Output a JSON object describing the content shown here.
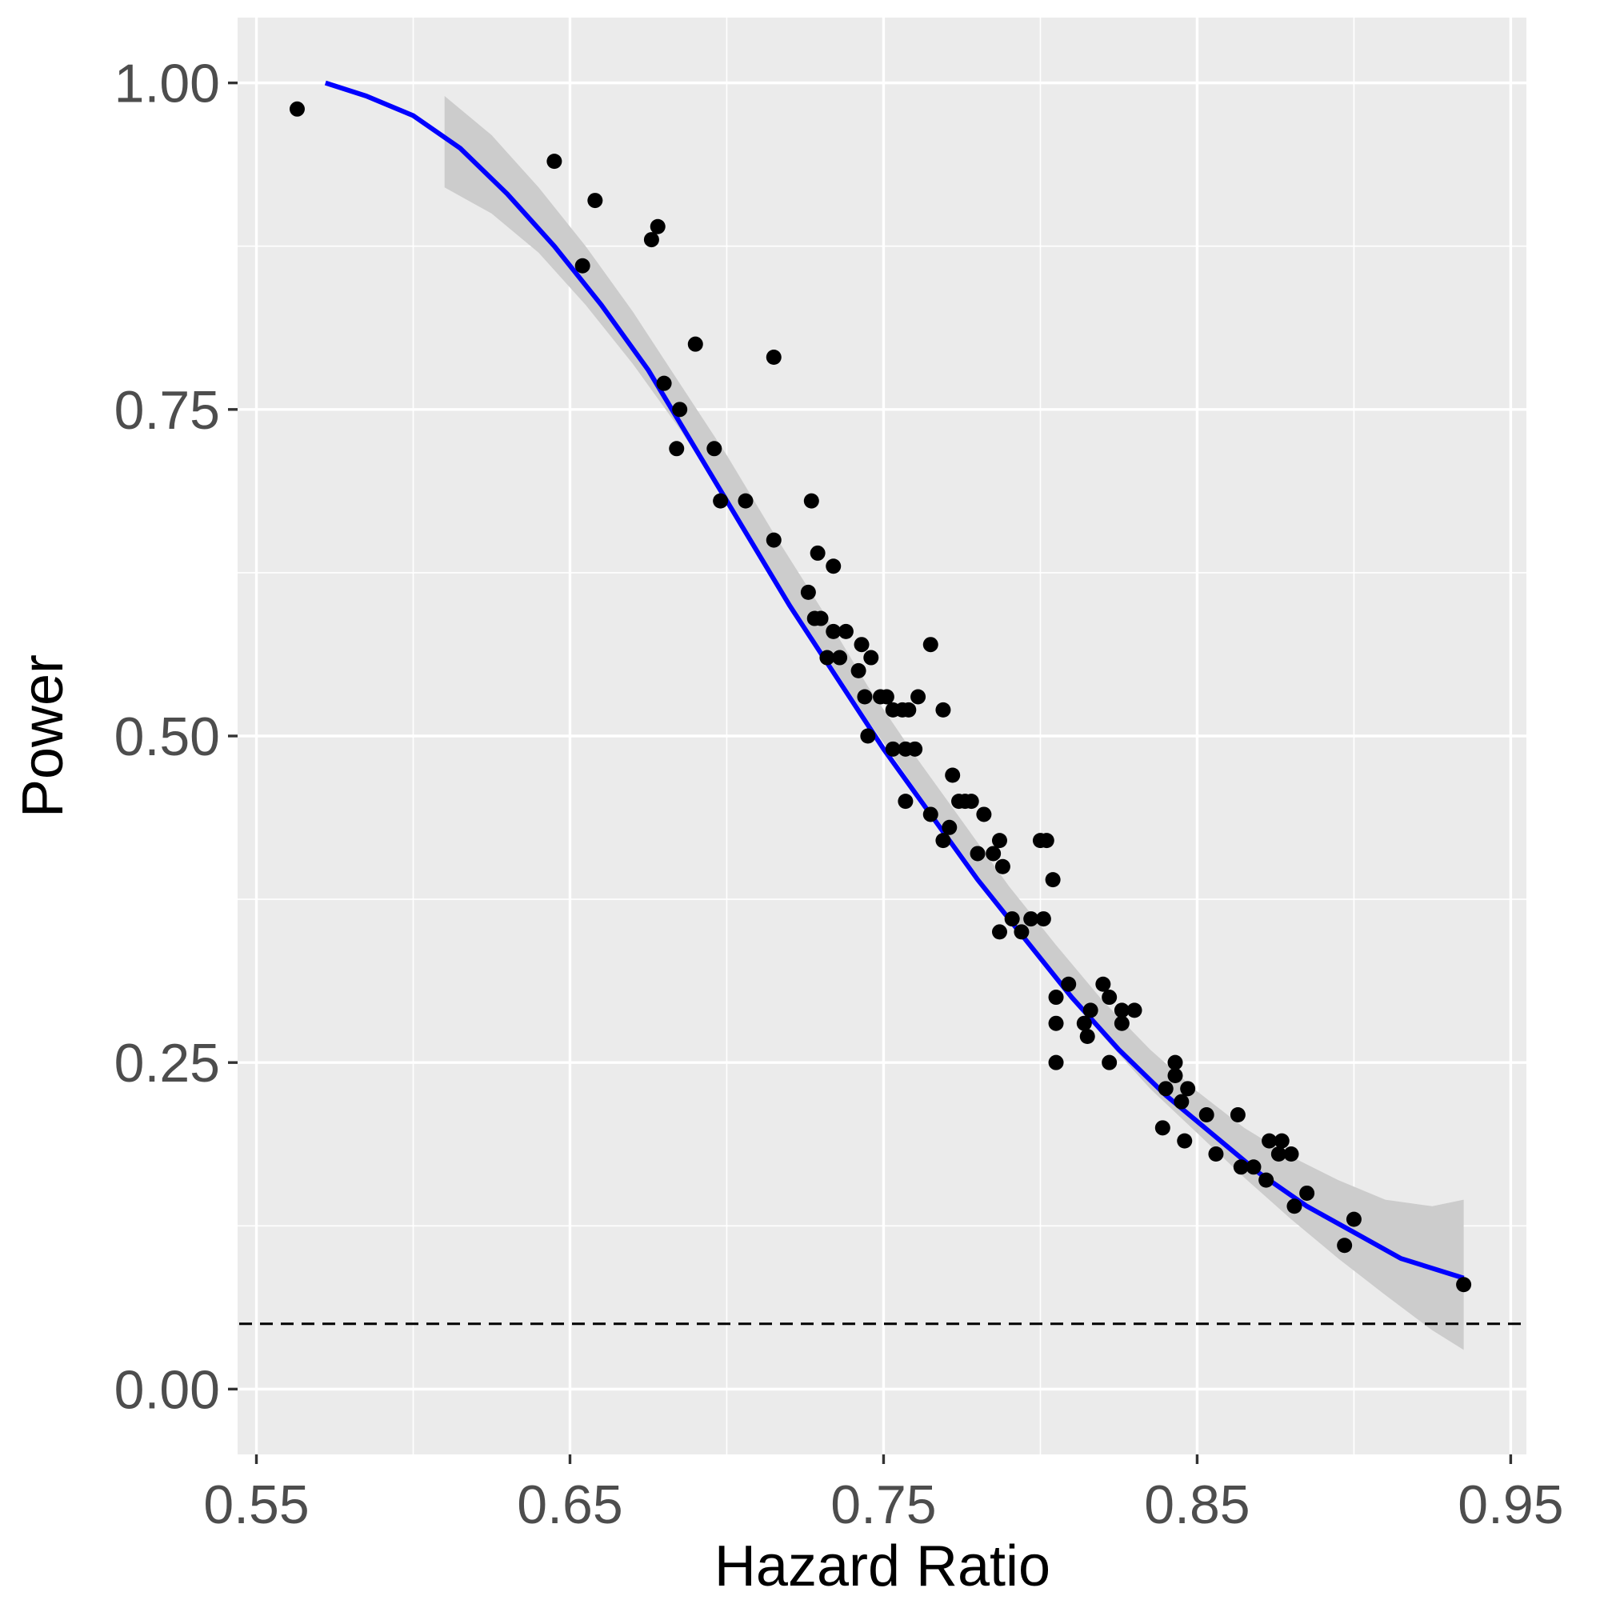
{
  "chart_data": {
    "type": "scatter",
    "xlabel": "Hazard Ratio",
    "ylabel": "Power",
    "xlim": [
      0.544,
      0.955
    ],
    "ylim": [
      -0.05,
      1.05
    ],
    "x_ticks": [
      0.55,
      0.65,
      0.75,
      0.85,
      0.95
    ],
    "x_tick_labels": [
      "0.55",
      "0.65",
      "0.75",
      "0.85",
      "0.95"
    ],
    "x_minor_ticks": [
      0.6,
      0.7,
      0.8,
      0.9
    ],
    "y_ticks": [
      0.0,
      0.25,
      0.5,
      0.75,
      1.0
    ],
    "y_tick_labels": [
      "0.00",
      "0.25",
      "0.50",
      "0.75",
      "1.00"
    ],
    "y_minor_ticks": [
      0.125,
      0.375,
      0.625,
      0.875
    ],
    "grid": true,
    "background": "#ebebeb",
    "grid_color": "#ffffff",
    "point_color": "#000000",
    "fit_color": "#0000ff",
    "band_color": "#cccccc",
    "reference_line": {
      "y": 0.05,
      "style": "dashed",
      "color": "#000000"
    },
    "points": [
      [
        0.563,
        0.98
      ],
      [
        0.645,
        0.94
      ],
      [
        0.654,
        0.86
      ],
      [
        0.658,
        0.91
      ],
      [
        0.676,
        0.88
      ],
      [
        0.678,
        0.89
      ],
      [
        0.68,
        0.77
      ],
      [
        0.684,
        0.72
      ],
      [
        0.685,
        0.75
      ],
      [
        0.69,
        0.8
      ],
      [
        0.696,
        0.72
      ],
      [
        0.698,
        0.68
      ],
      [
        0.706,
        0.68
      ],
      [
        0.715,
        0.65
      ],
      [
        0.715,
        0.79
      ],
      [
        0.726,
        0.61
      ],
      [
        0.727,
        0.68
      ],
      [
        0.728,
        0.59
      ],
      [
        0.729,
        0.64
      ],
      [
        0.73,
        0.59
      ],
      [
        0.732,
        0.56
      ],
      [
        0.734,
        0.58
      ],
      [
        0.734,
        0.63
      ],
      [
        0.736,
        0.56
      ],
      [
        0.738,
        0.58
      ],
      [
        0.742,
        0.55
      ],
      [
        0.743,
        0.57
      ],
      [
        0.744,
        0.53
      ],
      [
        0.745,
        0.5
      ],
      [
        0.746,
        0.56
      ],
      [
        0.749,
        0.53
      ],
      [
        0.751,
        0.53
      ],
      [
        0.753,
        0.49
      ],
      [
        0.753,
        0.52
      ],
      [
        0.756,
        0.52
      ],
      [
        0.757,
        0.45
      ],
      [
        0.757,
        0.49
      ],
      [
        0.758,
        0.52
      ],
      [
        0.76,
        0.49
      ],
      [
        0.761,
        0.53
      ],
      [
        0.765,
        0.57
      ],
      [
        0.765,
        0.44
      ],
      [
        0.769,
        0.52
      ],
      [
        0.769,
        0.42
      ],
      [
        0.771,
        0.43
      ],
      [
        0.772,
        0.47
      ],
      [
        0.774,
        0.45
      ],
      [
        0.776,
        0.45
      ],
      [
        0.778,
        0.45
      ],
      [
        0.78,
        0.41
      ],
      [
        0.782,
        0.44
      ],
      [
        0.785,
        0.41
      ],
      [
        0.787,
        0.35
      ],
      [
        0.787,
        0.42
      ],
      [
        0.788,
        0.4
      ],
      [
        0.791,
        0.36
      ],
      [
        0.794,
        0.35
      ],
      [
        0.797,
        0.36
      ],
      [
        0.8,
        0.42
      ],
      [
        0.801,
        0.36
      ],
      [
        0.802,
        0.42
      ],
      [
        0.804,
        0.39
      ],
      [
        0.805,
        0.3
      ],
      [
        0.805,
        0.28
      ],
      [
        0.805,
        0.25
      ],
      [
        0.809,
        0.31
      ],
      [
        0.814,
        0.28
      ],
      [
        0.815,
        0.27
      ],
      [
        0.816,
        0.29
      ],
      [
        0.82,
        0.31
      ],
      [
        0.822,
        0.3
      ],
      [
        0.822,
        0.25
      ],
      [
        0.826,
        0.29
      ],
      [
        0.826,
        0.28
      ],
      [
        0.83,
        0.29
      ],
      [
        0.839,
        0.2
      ],
      [
        0.84,
        0.23
      ],
      [
        0.843,
        0.25
      ],
      [
        0.843,
        0.24
      ],
      [
        0.845,
        0.22
      ],
      [
        0.846,
        0.19
      ],
      [
        0.847,
        0.23
      ],
      [
        0.853,
        0.21
      ],
      [
        0.856,
        0.18
      ],
      [
        0.863,
        0.21
      ],
      [
        0.864,
        0.17
      ],
      [
        0.868,
        0.17
      ],
      [
        0.872,
        0.16
      ],
      [
        0.873,
        0.19
      ],
      [
        0.876,
        0.18
      ],
      [
        0.877,
        0.19
      ],
      [
        0.88,
        0.18
      ],
      [
        0.881,
        0.14
      ],
      [
        0.885,
        0.15
      ],
      [
        0.897,
        0.11
      ],
      [
        0.9,
        0.13
      ],
      [
        0.935,
        0.08
      ]
    ],
    "fit_curve": [
      [
        0.572,
        1.0
      ],
      [
        0.585,
        0.99
      ],
      [
        0.6,
        0.975
      ],
      [
        0.615,
        0.95
      ],
      [
        0.63,
        0.915
      ],
      [
        0.645,
        0.875
      ],
      [
        0.66,
        0.83
      ],
      [
        0.675,
        0.78
      ],
      [
        0.69,
        0.72
      ],
      [
        0.705,
        0.66
      ],
      [
        0.72,
        0.6
      ],
      [
        0.735,
        0.545
      ],
      [
        0.75,
        0.49
      ],
      [
        0.765,
        0.44
      ],
      [
        0.78,
        0.39
      ],
      [
        0.795,
        0.345
      ],
      [
        0.81,
        0.3
      ],
      [
        0.825,
        0.26
      ],
      [
        0.84,
        0.225
      ],
      [
        0.855,
        0.195
      ],
      [
        0.87,
        0.165
      ],
      [
        0.885,
        0.14
      ],
      [
        0.9,
        0.12
      ],
      [
        0.915,
        0.1
      ],
      [
        0.935,
        0.085
      ]
    ],
    "confidence_band": [
      [
        0.61,
        0.92,
        0.99
      ],
      [
        0.625,
        0.9,
        0.96
      ],
      [
        0.64,
        0.87,
        0.92
      ],
      [
        0.655,
        0.83,
        0.875
      ],
      [
        0.67,
        0.785,
        0.825
      ],
      [
        0.685,
        0.735,
        0.77
      ],
      [
        0.7,
        0.68,
        0.715
      ],
      [
        0.715,
        0.62,
        0.655
      ],
      [
        0.73,
        0.567,
        0.598
      ],
      [
        0.745,
        0.512,
        0.538
      ],
      [
        0.76,
        0.46,
        0.485
      ],
      [
        0.775,
        0.41,
        0.435
      ],
      [
        0.79,
        0.36,
        0.385
      ],
      [
        0.805,
        0.315,
        0.34
      ],
      [
        0.82,
        0.27,
        0.297
      ],
      [
        0.835,
        0.23,
        0.26
      ],
      [
        0.85,
        0.196,
        0.228
      ],
      [
        0.865,
        0.162,
        0.2
      ],
      [
        0.88,
        0.13,
        0.178
      ],
      [
        0.895,
        0.1,
        0.16
      ],
      [
        0.91,
        0.072,
        0.145
      ],
      [
        0.925,
        0.045,
        0.14
      ],
      [
        0.935,
        0.03,
        0.145
      ]
    ]
  }
}
